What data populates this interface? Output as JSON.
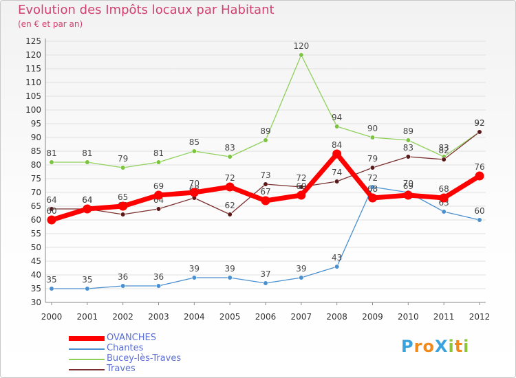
{
  "title": "Evolution des Impôts locaux par Habitant",
  "subtitle": "(en € et par an)",
  "logo": {
    "text": "Proxiti",
    "letters": [
      {
        "ch": "P",
        "color": "#3aa3dd"
      },
      {
        "ch": "r",
        "color": "#f08a1c"
      },
      {
        "ch": "o",
        "color": "#f08a1c"
      },
      {
        "ch": "X",
        "color": "#3aa3dd"
      },
      {
        "ch": "i",
        "color": "#8cc43c"
      },
      {
        "ch": "t",
        "color": "#f08a1c"
      },
      {
        "ch": "i",
        "color": "#8cc43c"
      }
    ]
  },
  "chart_data": {
    "type": "line",
    "title": "Evolution des Impôts locaux par Habitant",
    "subtitle": "(en € et par an)",
    "xlabel": "",
    "ylabel": "",
    "x": [
      "2000",
      "2001",
      "2002",
      "2003",
      "2004",
      "2005",
      "2006",
      "2007",
      "2008",
      "2009",
      "2010",
      "2011",
      "2012"
    ],
    "yticks": [
      30,
      35,
      40,
      45,
      50,
      55,
      60,
      65,
      70,
      75,
      80,
      85,
      90,
      95,
      100,
      105,
      110,
      115,
      120,
      125
    ],
    "ylim": [
      30,
      125
    ],
    "grid": "horizontal",
    "legend_position": "bottom-left",
    "series": [
      {
        "name": "Chantes",
        "color": "#4a8fd0",
        "marker": "#4a8fd0",
        "values": [
          35,
          35,
          36,
          36,
          39,
          39,
          37,
          39,
          43,
          72,
          70,
          63,
          60
        ]
      },
      {
        "name": "Bucey-lès-Traves",
        "color": "#8fd05a",
        "marker": "#7cc440",
        "values": [
          81,
          81,
          79,
          81,
          85,
          83,
          89,
          120,
          94,
          90,
          89,
          83,
          92
        ]
      },
      {
        "name": "Traves",
        "color": "#7a2e2e",
        "marker": "#5a1818",
        "values": [
          64,
          64,
          62,
          64,
          68,
          62,
          73,
          72,
          74,
          79,
          83,
          82,
          92
        ]
      },
      {
        "name": "OVANCHES",
        "color": "#ff0000",
        "marker": "#ff0000",
        "values": [
          60,
          64,
          65,
          69,
          70,
          72,
          67,
          69,
          84,
          68,
          69,
          68,
          76
        ]
      }
    ],
    "legend_order": [
      "OVANCHES",
      "Chantes",
      "Bucey-lès-Traves",
      "Traves"
    ]
  }
}
